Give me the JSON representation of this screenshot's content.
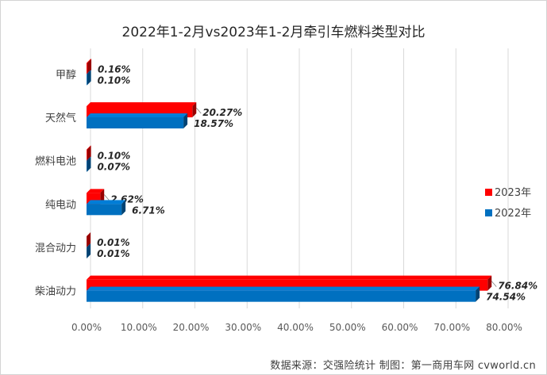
{
  "chart_data": {
    "type": "bar",
    "orientation": "horizontal",
    "title": "2022年1-2月vs2023年1-2月牵引车燃料类型对比",
    "categories": [
      "甲醇",
      "天然气",
      "燃料电池",
      "纯电动",
      "混合动力",
      "柴油动力"
    ],
    "series": [
      {
        "name": "2023年",
        "values": [
          0.16,
          20.27,
          0.1,
          2.62,
          0.01,
          76.84
        ],
        "labels": [
          "0.16%",
          "20.27%",
          "0.10%",
          "2.62%",
          "0.01%",
          "76.84%"
        ],
        "color": "#ff0000"
      },
      {
        "name": "2022年",
        "values": [
          0.1,
          18.57,
          0.07,
          6.71,
          0.01,
          74.54
        ],
        "labels": [
          "0.10%",
          "18.57%",
          "0.07%",
          "6.71%",
          "0.01%",
          "74.54%"
        ],
        "color": "#0070c0"
      }
    ],
    "xlim": [
      0,
      80
    ],
    "xticks": [
      "0.00%",
      "10.00%",
      "20.00%",
      "30.00%",
      "40.00%",
      "50.00%",
      "60.00%",
      "70.00%",
      "80.00%"
    ],
    "grid": true,
    "legend_position": "right"
  },
  "footer": {
    "source": "数据来源：交强险统计    制图：第一商用车网 cvworld.cn"
  }
}
